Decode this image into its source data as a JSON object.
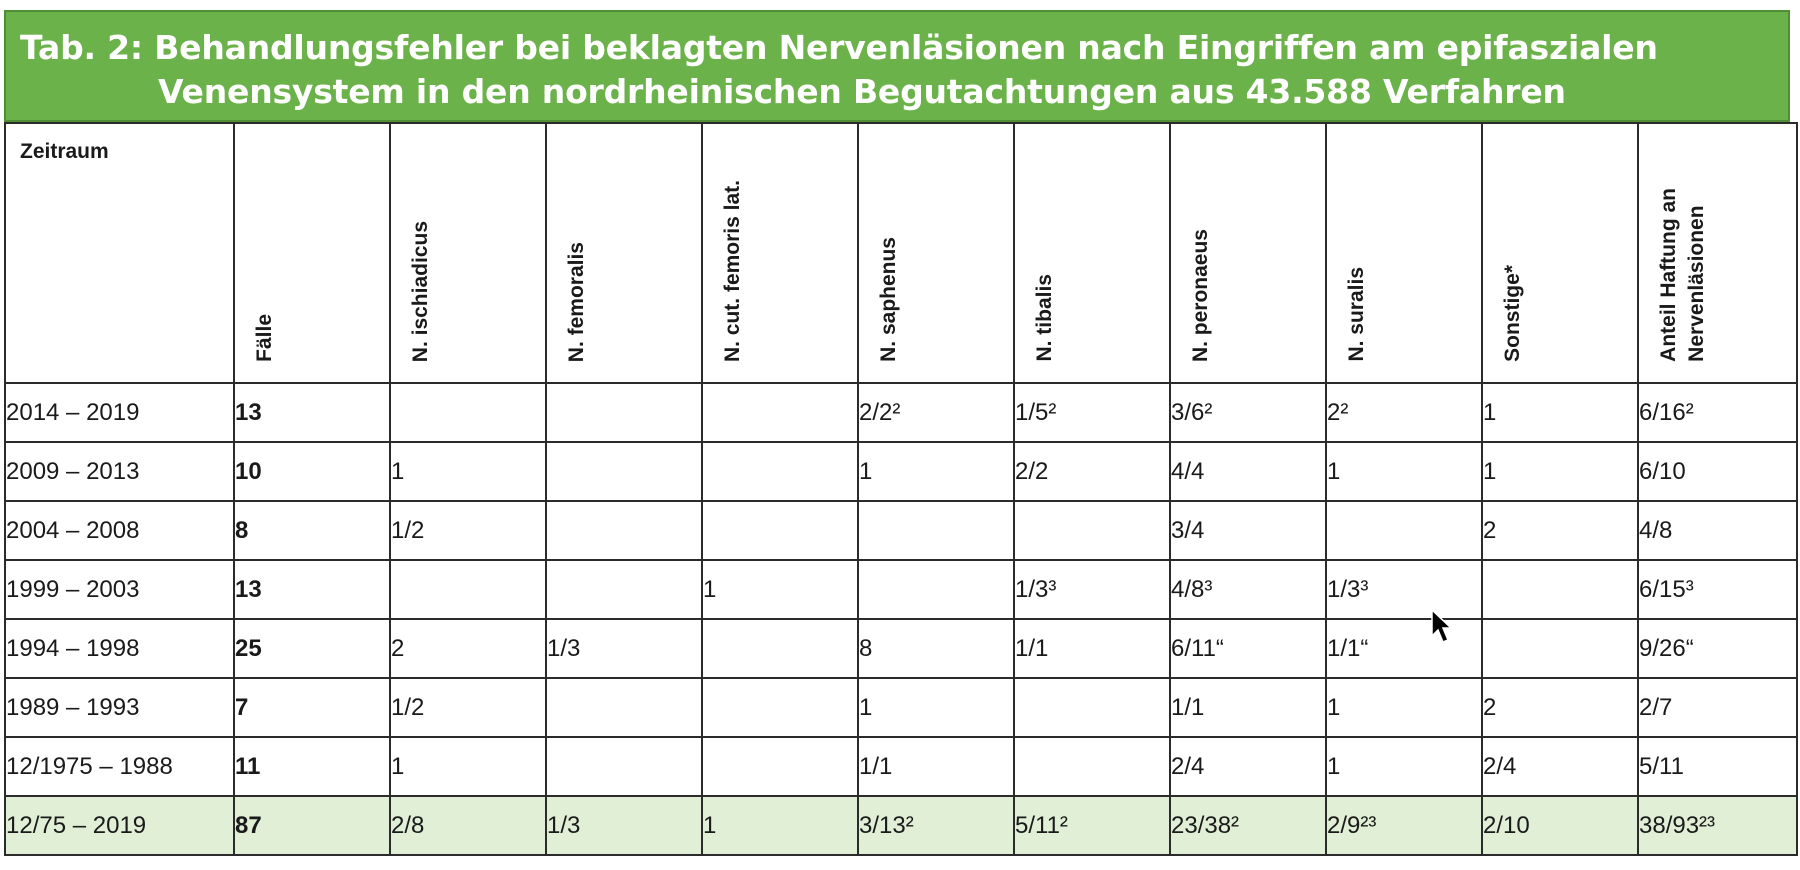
{
  "title": {
    "line1": "Tab. 2: Behandlungsfehler bei beklagten Nervenläsionen nach Eingriffen am epifaszialen",
    "line2": "Venensystem in den nordrheinischen Begutachtungen aus 43.588 Verfahren"
  },
  "columns": {
    "zeitraum": "Zeitraum",
    "faelle": "Fälle",
    "ischiadicus": "N. ischiadicus",
    "femoralis": "N. femoralis",
    "cut_femoris": "N. cut. femoris lat.",
    "saphenus": "N. saphenus",
    "tibalis": "N. tibalis",
    "peronaeus": "N. peronaeus",
    "suralis": "N. suralis",
    "sonstige": "Sonstige*",
    "anteil_l1": "Anteil Haftung an",
    "anteil_l2": "Nervenläsionen"
  },
  "rows": [
    {
      "zeitraum": "2014 – 2019",
      "faelle": "13",
      "ischiadicus": "",
      "femoralis": "",
      "cut_femoris": "",
      "saphenus": "2/2²",
      "tibalis": "1/5²",
      "peronaeus": "3/6²",
      "suralis": "2²",
      "sonstige": "1",
      "anteil": "6/16²"
    },
    {
      "zeitraum": "2009 – 2013",
      "faelle": "10",
      "ischiadicus": "1",
      "femoralis": "",
      "cut_femoris": "",
      "saphenus": "1",
      "tibalis": "2/2",
      "peronaeus": "4/4",
      "suralis": "1",
      "sonstige": "1",
      "anteil": "6/10"
    },
    {
      "zeitraum": "2004 – 2008",
      "faelle": "8",
      "ischiadicus": "1/2",
      "femoralis": "",
      "cut_femoris": "",
      "saphenus": "",
      "tibalis": "",
      "peronaeus": "3/4",
      "suralis": "",
      "sonstige": "2",
      "anteil": "4/8"
    },
    {
      "zeitraum": "1999 – 2003",
      "faelle": "13",
      "ischiadicus": "",
      "femoralis": "",
      "cut_femoris": "1",
      "saphenus": "",
      "tibalis": "1/3³",
      "peronaeus": "4/8³",
      "suralis": "1/3³",
      "sonstige": "",
      "anteil": "6/15³"
    },
    {
      "zeitraum": "1994 – 1998",
      "faelle": "25",
      "ischiadicus": "2",
      "femoralis": "1/3",
      "cut_femoris": "",
      "saphenus": "8",
      "tibalis": "1/1",
      "peronaeus": "6/11“",
      "suralis": "1/1“",
      "sonstige": "",
      "anteil": "9/26“"
    },
    {
      "zeitraum": "1989 – 1993",
      "faelle": "7",
      "ischiadicus": "1/2",
      "femoralis": "",
      "cut_femoris": "",
      "saphenus": "1",
      "tibalis": "",
      "peronaeus": "1/1",
      "suralis": "1",
      "sonstige": "2",
      "anteil": "2/7"
    },
    {
      "zeitraum": "12/1975 – 1988",
      "faelle": "11",
      "ischiadicus": "1",
      "femoralis": "",
      "cut_femoris": "",
      "saphenus": "1/1",
      "tibalis": "",
      "peronaeus": "2/4",
      "suralis": "1",
      "sonstige": "2/4",
      "anteil": "5/11"
    }
  ],
  "total": {
    "zeitraum": "12/75 – 2019",
    "faelle": "87",
    "ischiadicus": "2/8",
    "femoralis": "1/3",
    "cut_femoris": "1",
    "saphenus": "3/13²",
    "tibalis": "5/11²",
    "peronaeus": "23/38²",
    "suralis": "2/9²³",
    "sonstige": "2/10",
    "anteil": "38/93²³"
  },
  "colors": {
    "banner": "#6bb24a",
    "total_row": "#e0efd6"
  },
  "icons": {
    "cursor": "mouse-pointer-icon"
  }
}
